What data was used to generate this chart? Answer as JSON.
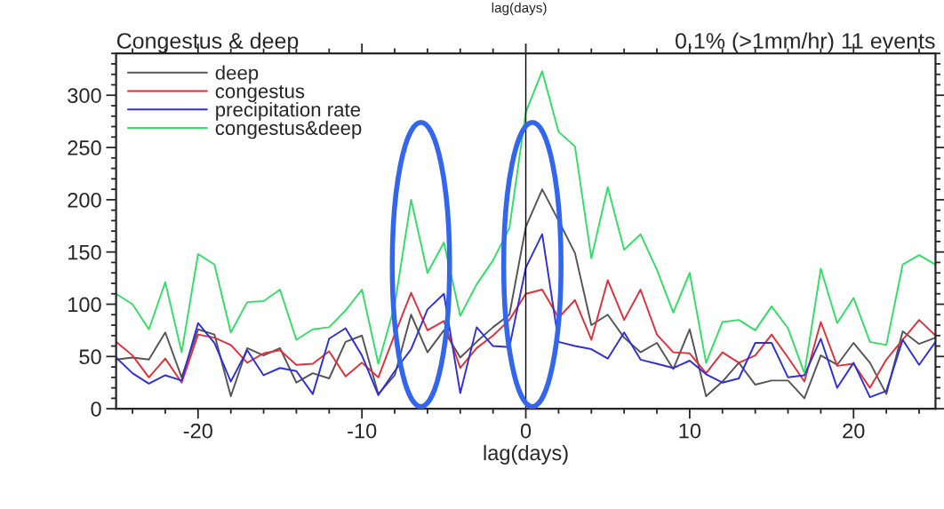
{
  "chart_data": {
    "type": "line",
    "title": "Congestus & deep",
    "subtitle": "0.1% (>1mm/hr) 11 events",
    "xlabel": "lag(days)",
    "annotations": [
      "lag(days)"
    ],
    "x": [
      -25,
      -24,
      -23,
      -22,
      -21,
      -20,
      -19,
      -18,
      -17,
      -16,
      -15,
      -14,
      -13,
      -12,
      -11,
      -10,
      -9,
      -8,
      -7,
      -6,
      -5,
      -4,
      -3,
      -2,
      -1,
      0,
      1,
      2,
      3,
      4,
      5,
      6,
      7,
      8,
      9,
      10,
      11,
      12,
      13,
      14,
      15,
      16,
      17,
      18,
      19,
      20,
      21,
      22,
      23,
      24,
      25
    ],
    "series": [
      {
        "name": "deep",
        "color": "#555555",
        "values": [
          47,
          49,
          47,
          73,
          30,
          76,
          71,
          12,
          58,
          51,
          58,
          25,
          34,
          29,
          64,
          70,
          14,
          32,
          90,
          54,
          75,
          49,
          64,
          78,
          90,
          174,
          210,
          180,
          149,
          80,
          90,
          68,
          54,
          63,
          38,
          76,
          12,
          26,
          44,
          23,
          27,
          27,
          10,
          51,
          42,
          63,
          44,
          14,
          74,
          62,
          68
        ]
      },
      {
        "name": "congestus",
        "color": "#e0303a",
        "values": [
          64,
          51,
          30,
          48,
          25,
          71,
          68,
          61,
          44,
          53,
          56,
          42,
          43,
          55,
          31,
          44,
          30,
          71,
          111,
          75,
          84,
          39,
          58,
          70,
          85,
          110,
          114,
          87,
          104,
          66,
          123,
          85,
          114,
          71,
          54,
          53,
          34,
          54,
          44,
          51,
          71,
          49,
          26,
          83,
          41,
          43,
          20,
          47,
          66,
          85,
          70
        ]
      },
      {
        "name": "precipitation rate",
        "color": "#3030d8",
        "values": [
          49,
          34,
          24,
          32,
          27,
          82,
          63,
          26,
          56,
          32,
          39,
          36,
          14,
          67,
          77,
          51,
          13,
          36,
          57,
          95,
          110,
          15,
          78,
          60,
          59,
          135,
          167,
          64,
          60,
          57,
          48,
          73,
          47,
          43,
          39,
          46,
          33,
          25,
          29,
          63,
          63,
          30,
          32,
          67,
          20,
          44,
          11,
          17,
          66,
          42,
          64
        ]
      },
      {
        "name": "congestus&deep",
        "color": "#33dd66",
        "values": [
          110,
          100,
          76,
          121,
          54,
          148,
          138,
          73,
          102,
          103,
          114,
          66,
          76,
          78,
          94,
          114,
          43,
          99,
          200,
          130,
          159,
          89,
          119,
          142,
          173,
          284,
          323,
          265,
          251,
          144,
          212,
          152,
          167,
          133,
          92,
          130,
          44,
          83,
          85,
          75,
          98,
          77,
          34,
          134,
          82,
          106,
          64,
          61,
          138,
          147,
          138
        ]
      }
    ],
    "xlim": [
      -25,
      25
    ],
    "xticks": [
      {
        "value": -24,
        "label": null
      },
      {
        "value": -22,
        "label": null
      },
      {
        "value": -20,
        "label": "-20"
      },
      {
        "value": -18,
        "label": null
      },
      {
        "value": -16,
        "label": null
      },
      {
        "value": -14,
        "label": null
      },
      {
        "value": -12,
        "label": null
      },
      {
        "value": -10,
        "label": "-10"
      },
      {
        "value": -8,
        "label": null
      },
      {
        "value": -6,
        "label": null
      },
      {
        "value": -4,
        "label": null
      },
      {
        "value": -2,
        "label": null
      },
      0,
      {
        "value": 2,
        "label": null
      },
      {
        "value": 4,
        "label": null
      },
      {
        "value": 6,
        "label": null
      },
      {
        "value": 8,
        "label": null
      },
      10,
      {
        "value": 12,
        "label": null
      },
      {
        "value": 14,
        "label": null
      },
      {
        "value": 16,
        "label": null
      },
      {
        "value": 18,
        "label": null
      },
      20,
      {
        "value": 22,
        "label": null
      },
      {
        "value": 24,
        "label": null
      }
    ],
    "ylim": [
      0,
      340
    ],
    "yticks": [
      0,
      {
        "value": 10,
        "label": null
      },
      {
        "value": 20,
        "label": null
      },
      {
        "value": 30,
        "label": null
      },
      {
        "value": 40,
        "label": null
      },
      50,
      {
        "value": 60,
        "label": null
      },
      {
        "value": 70,
        "label": null
      },
      {
        "value": 80,
        "label": null
      },
      {
        "value": 90,
        "label": null
      },
      100,
      {
        "value": 110,
        "label": null
      },
      {
        "value": 120,
        "label": null
      },
      {
        "value": 130,
        "label": null
      },
      {
        "value": 140,
        "label": null
      },
      150,
      {
        "value": 160,
        "label": null
      },
      {
        "value": 170,
        "label": null
      },
      {
        "value": 180,
        "label": null
      },
      {
        "value": 190,
        "label": null
      },
      200,
      {
        "value": 210,
        "label": null
      },
      {
        "value": 220,
        "label": null
      },
      {
        "value": 230,
        "label": null
      },
      {
        "value": 240,
        "label": null
      },
      250,
      {
        "value": 260,
        "label": null
      },
      {
        "value": 270,
        "label": null
      },
      {
        "value": 280,
        "label": null
      },
      {
        "value": 290,
        "label": null
      },
      300,
      {
        "value": 310,
        "label": null
      },
      {
        "value": 320,
        "label": null
      },
      {
        "value": 330,
        "label": null
      },
      {
        "value": 340,
        "label": null
      }
    ],
    "ref_lines": [
      {
        "axis": "x",
        "value": 0,
        "color": "#000000"
      }
    ],
    "legend": "top left",
    "grid": false
  }
}
